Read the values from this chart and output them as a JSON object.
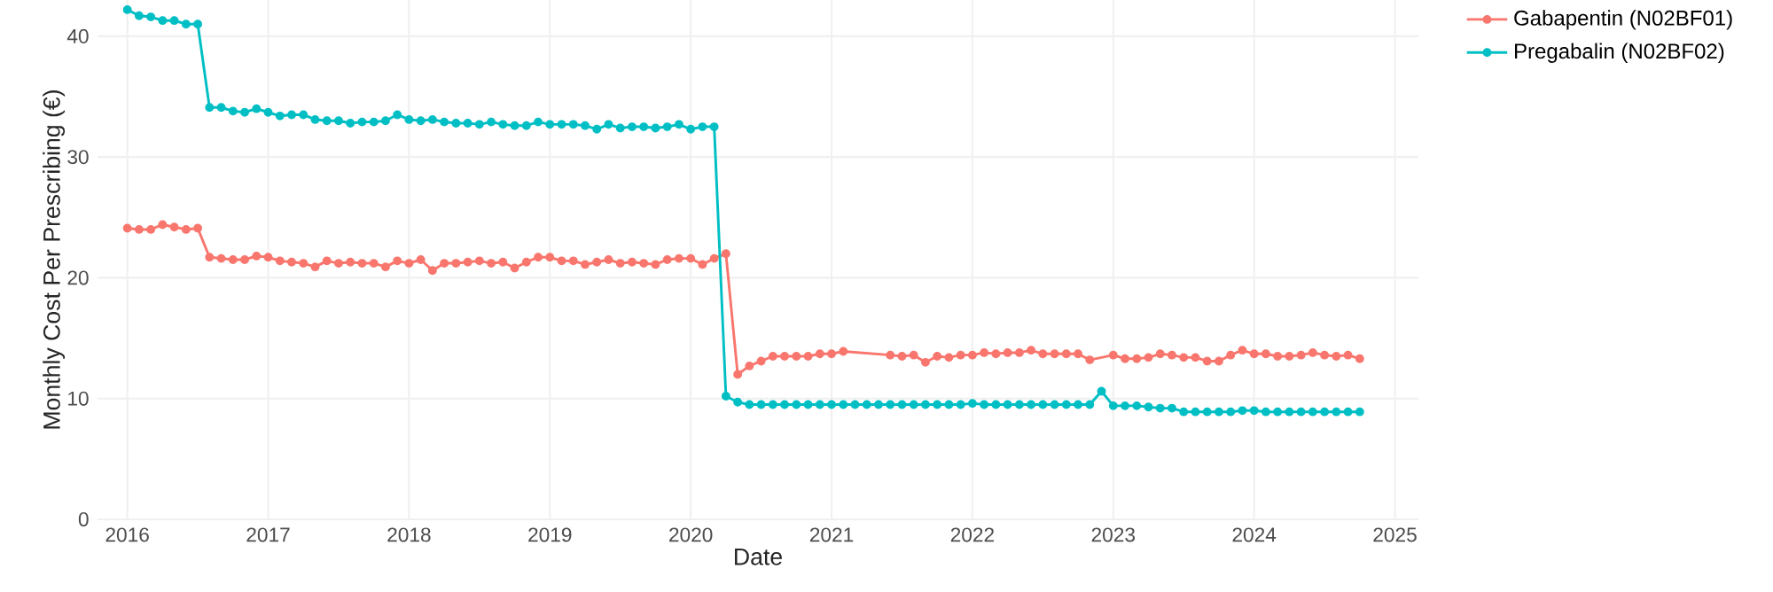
{
  "chart_data": {
    "type": "line",
    "xlabel": "Date",
    "ylabel": "Monthly Cost Per Prescribing (€)",
    "xlim": [
      "2015-10-15",
      "2025-03"
    ],
    "ylim": [
      0,
      43
    ],
    "xticks": [
      "2016",
      "2017",
      "2018",
      "2019",
      "2020",
      "2021",
      "2022",
      "2023",
      "2024",
      "2025"
    ],
    "yticks": [
      0,
      10,
      20,
      30,
      40
    ],
    "grid": true,
    "legend": "top right",
    "marker": "circle",
    "line_style": "solid",
    "series": [
      {
        "name": "Gabapentin (N02BF01)",
        "color": "#f8766d",
        "x": [
          "2016-01",
          "2016-02",
          "2016-03",
          "2016-04",
          "2016-05",
          "2016-06",
          "2016-07",
          "2016-08",
          "2016-09",
          "2016-10",
          "2016-11",
          "2016-12",
          "2017-01",
          "2017-02",
          "2017-03",
          "2017-04",
          "2017-05",
          "2017-06",
          "2017-07",
          "2017-08",
          "2017-09",
          "2017-10",
          "2017-11",
          "2017-12",
          "2018-01",
          "2018-02",
          "2018-03",
          "2018-04",
          "2018-05",
          "2018-06",
          "2018-07",
          "2018-08",
          "2018-09",
          "2018-10",
          "2018-11",
          "2018-12",
          "2019-01",
          "2019-02",
          "2019-03",
          "2019-04",
          "2019-05",
          "2019-06",
          "2019-07",
          "2019-08",
          "2019-09",
          "2019-10",
          "2019-11",
          "2019-12",
          "2020-01",
          "2020-02",
          "2020-03",
          "2020-04",
          "2020-05",
          "2020-06",
          "2020-07",
          "2020-08",
          "2020-09",
          "2020-10",
          "2020-11",
          "2020-12",
          "2021-01",
          "2021-02",
          "2021-06",
          "2021-07",
          "2021-08",
          "2021-09",
          "2021-10",
          "2021-11",
          "2021-12",
          "2022-01",
          "2022-02",
          "2022-03",
          "2022-04",
          "2022-05",
          "2022-06",
          "2022-07",
          "2022-08",
          "2022-09",
          "2022-10",
          "2022-11",
          "2023-01",
          "2023-02",
          "2023-03",
          "2023-04",
          "2023-05",
          "2023-06",
          "2023-07",
          "2023-08",
          "2023-09",
          "2023-10",
          "2023-11",
          "2023-12",
          "2024-01",
          "2024-02",
          "2024-03",
          "2024-04",
          "2024-05",
          "2024-06",
          "2024-07",
          "2024-08",
          "2024-09",
          "2024-10"
        ],
        "values": [
          24.1,
          24.0,
          24.0,
          24.4,
          24.2,
          24.0,
          24.1,
          21.7,
          21.6,
          21.5,
          21.5,
          21.8,
          21.7,
          21.4,
          21.3,
          21.2,
          20.9,
          21.4,
          21.2,
          21.3,
          21.2,
          21.2,
          20.9,
          21.4,
          21.2,
          21.5,
          20.6,
          21.2,
          21.2,
          21.3,
          21.4,
          21.2,
          21.3,
          20.8,
          21.3,
          21.7,
          21.7,
          21.4,
          21.4,
          21.1,
          21.3,
          21.5,
          21.2,
          21.3,
          21.2,
          21.1,
          21.5,
          21.6,
          21.6,
          21.1,
          21.6,
          22.0,
          12.0,
          12.7,
          13.1,
          13.5,
          13.5,
          13.5,
          13.5,
          13.7,
          13.7,
          13.9,
          13.6,
          13.5,
          13.6,
          13.0,
          13.5,
          13.4,
          13.6,
          13.6,
          13.8,
          13.7,
          13.8,
          13.8,
          14.0,
          13.7,
          13.7,
          13.7,
          13.7,
          13.2,
          13.6,
          13.3,
          13.3,
          13.4,
          13.7,
          13.6,
          13.4,
          13.4,
          13.1,
          13.1,
          13.6,
          14.0,
          13.7,
          13.7,
          13.5,
          13.5,
          13.6,
          13.8,
          13.6,
          13.5,
          13.6,
          13.3
        ]
      },
      {
        "name": "Pregabalin (N02BF02)",
        "color": "#00bfc4",
        "x": [
          "2016-01",
          "2016-02",
          "2016-03",
          "2016-04",
          "2016-05",
          "2016-06",
          "2016-07",
          "2016-08",
          "2016-09",
          "2016-10",
          "2016-11",
          "2016-12",
          "2017-01",
          "2017-02",
          "2017-03",
          "2017-04",
          "2017-05",
          "2017-06",
          "2017-07",
          "2017-08",
          "2017-09",
          "2017-10",
          "2017-11",
          "2017-12",
          "2018-01",
          "2018-02",
          "2018-03",
          "2018-04",
          "2018-05",
          "2018-06",
          "2018-07",
          "2018-08",
          "2018-09",
          "2018-10",
          "2018-11",
          "2018-12",
          "2019-01",
          "2019-02",
          "2019-03",
          "2019-04",
          "2019-05",
          "2019-06",
          "2019-07",
          "2019-08",
          "2019-09",
          "2019-10",
          "2019-11",
          "2019-12",
          "2020-01",
          "2020-02",
          "2020-03",
          "2020-04",
          "2020-05",
          "2020-06",
          "2020-07",
          "2020-08",
          "2020-09",
          "2020-10",
          "2020-11",
          "2020-12",
          "2021-01",
          "2021-02",
          "2021-03",
          "2021-04",
          "2021-05",
          "2021-06",
          "2021-07",
          "2021-08",
          "2021-09",
          "2021-10",
          "2021-11",
          "2021-12",
          "2022-01",
          "2022-02",
          "2022-03",
          "2022-04",
          "2022-05",
          "2022-06",
          "2022-07",
          "2022-08",
          "2022-09",
          "2022-10",
          "2022-11",
          "2022-12",
          "2023-01",
          "2023-02",
          "2023-03",
          "2023-04",
          "2023-05",
          "2023-06",
          "2023-07",
          "2023-08",
          "2023-09",
          "2023-10",
          "2023-11",
          "2023-12",
          "2024-01",
          "2024-02",
          "2024-03",
          "2024-04",
          "2024-05",
          "2024-06",
          "2024-07",
          "2024-08",
          "2024-09",
          "2024-10"
        ],
        "values": [
          42.2,
          41.7,
          41.6,
          41.3,
          41.3,
          41.0,
          41.0,
          34.1,
          34.1,
          33.8,
          33.7,
          34.0,
          33.7,
          33.4,
          33.5,
          33.5,
          33.1,
          33.0,
          33.0,
          32.8,
          32.9,
          32.9,
          33.0,
          33.5,
          33.1,
          33.0,
          33.1,
          32.9,
          32.8,
          32.8,
          32.7,
          32.9,
          32.7,
          32.6,
          32.6,
          32.9,
          32.7,
          32.7,
          32.7,
          32.6,
          32.3,
          32.7,
          32.4,
          32.5,
          32.5,
          32.4,
          32.5,
          32.7,
          32.3,
          32.5,
          32.5,
          10.2,
          9.7,
          9.5,
          9.5,
          9.5,
          9.5,
          9.5,
          9.5,
          9.5,
          9.5,
          9.5,
          9.5,
          9.5,
          9.5,
          9.5,
          9.5,
          9.5,
          9.5,
          9.5,
          9.5,
          9.5,
          9.6,
          9.5,
          9.5,
          9.5,
          9.5,
          9.5,
          9.5,
          9.5,
          9.5,
          9.5,
          9.5,
          10.6,
          9.4,
          9.4,
          9.4,
          9.3,
          9.2,
          9.2,
          8.9,
          8.9,
          8.9,
          8.9,
          8.9,
          9.0,
          9.0,
          8.9,
          8.9,
          8.9,
          8.9,
          8.9,
          8.9,
          8.9,
          8.9,
          8.9
        ]
      }
    ]
  }
}
